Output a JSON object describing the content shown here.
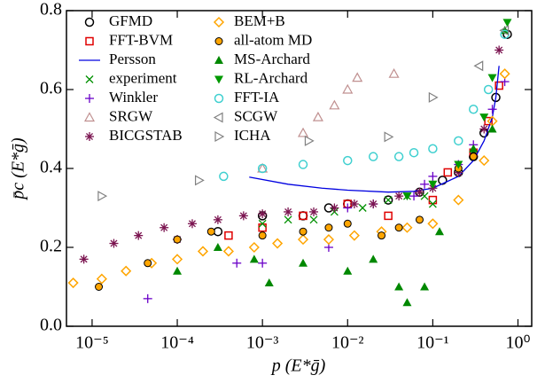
{
  "chart_data": {
    "type": "scatter",
    "xscale": "log",
    "xlabel": "p (E*ḡ)",
    "ylabel": "p̄c (E*ḡ)",
    "xlim": [
      5e-06,
      1.45
    ],
    "ylim": [
      0,
      0.8
    ],
    "xticks": [
      {
        "value": 1e-05,
        "label": "10⁻⁵"
      },
      {
        "value": 0.0001,
        "label": "10⁻⁴"
      },
      {
        "value": 0.001,
        "label": "10⁻³"
      },
      {
        "value": 0.01,
        "label": "10⁻²"
      },
      {
        "value": 0.1,
        "label": "10⁻¹"
      },
      {
        "value": 1,
        "label": "10⁰"
      }
    ],
    "yticks": [
      {
        "value": 0,
        "label": "0.0"
      },
      0.2,
      0.4,
      0.6,
      0.8
    ],
    "legend": "upper left",
    "legend_columns": 2,
    "series": [
      {
        "name": "GFMD",
        "color": "#000000",
        "marker": "circle",
        "x": [
          0.0003,
          0.001,
          0.003,
          0.006,
          0.01,
          0.03,
          0.07,
          0.13,
          0.2,
          0.3,
          0.4,
          0.55,
          0.75
        ],
        "values": [
          0.24,
          0.28,
          0.28,
          0.3,
          0.31,
          0.32,
          0.34,
          0.37,
          0.39,
          0.43,
          0.49,
          0.58,
          0.74
        ]
      },
      {
        "name": "FFT-BVM",
        "color": "#e00000",
        "marker": "square",
        "x": [
          0.0004,
          0.001,
          0.003,
          0.01,
          0.03,
          0.1,
          0.15,
          0.3,
          0.45,
          0.6
        ],
        "values": [
          0.23,
          0.25,
          0.28,
          0.31,
          0.28,
          0.32,
          0.39,
          0.44,
          0.52,
          0.61
        ]
      },
      {
        "name": "Persson",
        "color": "#0000e0",
        "marker": "line",
        "x": [
          0.0007,
          0.002,
          0.005,
          0.01,
          0.03,
          0.06,
          0.1,
          0.2,
          0.3,
          0.4,
          0.5,
          0.55,
          0.6
        ],
        "values": [
          0.378,
          0.36,
          0.35,
          0.345,
          0.34,
          0.342,
          0.35,
          0.38,
          0.42,
          0.47,
          0.53,
          0.58,
          0.66
        ]
      },
      {
        "name": "experiment",
        "color": "#009000",
        "marker": "x",
        "x": [
          0.001,
          0.002,
          0.004,
          0.007,
          0.015,
          0.03,
          0.05,
          0.08,
          0.1
        ],
        "values": [
          0.26,
          0.27,
          0.27,
          0.29,
          0.3,
          0.32,
          0.33,
          0.33,
          0.31
        ]
      },
      {
        "name": "Winkler",
        "color": "#6a00c8",
        "marker": "plus",
        "x": [
          4.5e-05,
          0.0005,
          0.001,
          0.006,
          0.01,
          0.02,
          0.06,
          0.08,
          0.1,
          0.2,
          0.3,
          0.5,
          0.7
        ],
        "values": [
          0.07,
          0.16,
          0.16,
          0.2,
          0.3,
          0.31,
          0.33,
          0.36,
          0.38,
          0.41,
          0.46,
          0.55,
          0.62
        ]
      },
      {
        "name": "SRGW",
        "color": "#c09090",
        "marker": "triangle-up-open",
        "x": [
          0.001,
          0.003,
          0.0045,
          0.007,
          0.01,
          0.013,
          0.035
        ],
        "values": [
          0.4,
          0.49,
          0.53,
          0.56,
          0.6,
          0.63,
          0.64
        ]
      },
      {
        "name": "BICGSTAB",
        "color": "#7b1450",
        "marker": "star",
        "x": [
          8e-06,
          1.8e-05,
          3.5e-05,
          7e-05,
          0.0001,
          0.00015,
          0.0003,
          0.0006,
          0.001,
          0.002,
          0.004,
          0.007,
          0.012,
          0.02,
          0.04,
          0.07,
          0.1,
          0.2,
          0.4,
          0.6
        ],
        "values": [
          0.17,
          0.21,
          0.23,
          0.25,
          0.22,
          0.26,
          0.27,
          0.28,
          0.285,
          0.29,
          0.29,
          0.3,
          0.31,
          0.31,
          0.33,
          0.34,
          0.35,
          0.39,
          0.5,
          0.7
        ]
      },
      {
        "name": "BEM+B",
        "color": "#ffa500",
        "marker": "diamond",
        "x": [
          6e-06,
          1.3e-05,
          2.5e-05,
          5e-05,
          0.0001,
          0.0002,
          0.0004,
          0.0008,
          0.0015,
          0.003,
          0.006,
          0.012,
          0.025,
          0.05,
          0.1,
          0.2,
          0.4,
          0.5,
          0.7
        ],
        "values": [
          0.11,
          0.12,
          0.14,
          0.16,
          0.17,
          0.19,
          0.19,
          0.2,
          0.21,
          0.22,
          0.22,
          0.23,
          0.24,
          0.25,
          0.26,
          0.32,
          0.42,
          0.52,
          0.64
        ]
      },
      {
        "name": "all-atom MD",
        "color": "#ffa500",
        "marker": "circle-filled-edge",
        "x": [
          1.2e-05,
          4.5e-05,
          0.0001,
          0.00025,
          0.001,
          0.003,
          0.006,
          0.01,
          0.025,
          0.04,
          0.07,
          0.2,
          0.3
        ],
        "values": [
          0.1,
          0.16,
          0.22,
          0.24,
          0.23,
          0.24,
          0.25,
          0.26,
          0.23,
          0.25,
          0.27,
          0.4,
          0.43
        ]
      },
      {
        "name": "MS-Archard",
        "color": "#008800",
        "marker": "triangle-up",
        "x": [
          0.0001,
          0.0003,
          0.0008,
          0.0012,
          0.003,
          0.01,
          0.02,
          0.04,
          0.05,
          0.08,
          0.12,
          0.3,
          0.5,
          0.7
        ],
        "values": [
          0.14,
          0.2,
          0.17,
          0.11,
          0.16,
          0.14,
          0.17,
          0.1,
          0.06,
          0.1,
          0.24,
          0.45,
          0.5,
          0.75
        ]
      },
      {
        "name": "RL-Archard",
        "color": "#009900",
        "marker": "triangle-down",
        "x": [
          0.05,
          0.1,
          0.2,
          0.4,
          0.5,
          0.75
        ],
        "values": [
          0.33,
          0.36,
          0.41,
          0.53,
          0.63,
          0.77
        ]
      },
      {
        "name": "FFT-IA",
        "color": "#40d0d0",
        "marker": "circle",
        "x": [
          0.00035,
          0.001,
          0.003,
          0.01,
          0.02,
          0.04,
          0.06,
          0.1,
          0.2,
          0.3,
          0.45,
          0.7
        ],
        "values": [
          0.38,
          0.4,
          0.41,
          0.42,
          0.43,
          0.43,
          0.44,
          0.45,
          0.47,
          0.55,
          0.6,
          0.74
        ]
      },
      {
        "name": "SCGW",
        "color": "#808080",
        "marker": "triangle-left",
        "x": [
          0.35,
          0.7
        ],
        "values": [
          0.66,
          0.75
        ]
      },
      {
        "name": "ICHA",
        "color": "#808080",
        "marker": "triangle-right",
        "x": [
          1.3e-05,
          0.00018,
          0.0035,
          0.03,
          0.1
        ],
        "values": [
          0.33,
          0.37,
          0.47,
          0.48,
          0.58
        ]
      }
    ]
  }
}
